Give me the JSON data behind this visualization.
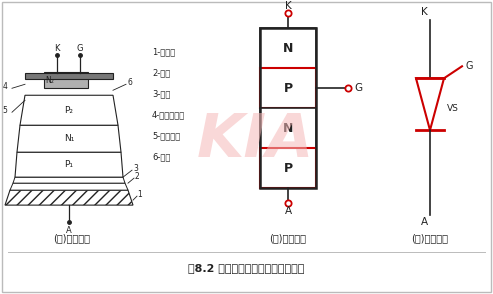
{
  "bg_color": "#ffffff",
  "border_color": "#bbbbbb",
  "title": "图8.2 晶阀管的结构示意和表示符号",
  "label_a": "(ａ)内部结构",
  "label_b": "(ｂ)结构示意",
  "label_c": "(ｃ)表示符号",
  "list_items": [
    "1-锐底座",
    "2-鑰片",
    "3-铝片",
    "4-金钐合金片",
    "5-金锐茅片",
    "6-硅片"
  ],
  "struct_labels": [
    "N",
    "P",
    "N",
    "P"
  ],
  "red_color": "#cc0000",
  "black_color": "#222222",
  "watermark_color": "#f5b8b8",
  "watermark_text": "KIA",
  "gray_color": "#888888"
}
